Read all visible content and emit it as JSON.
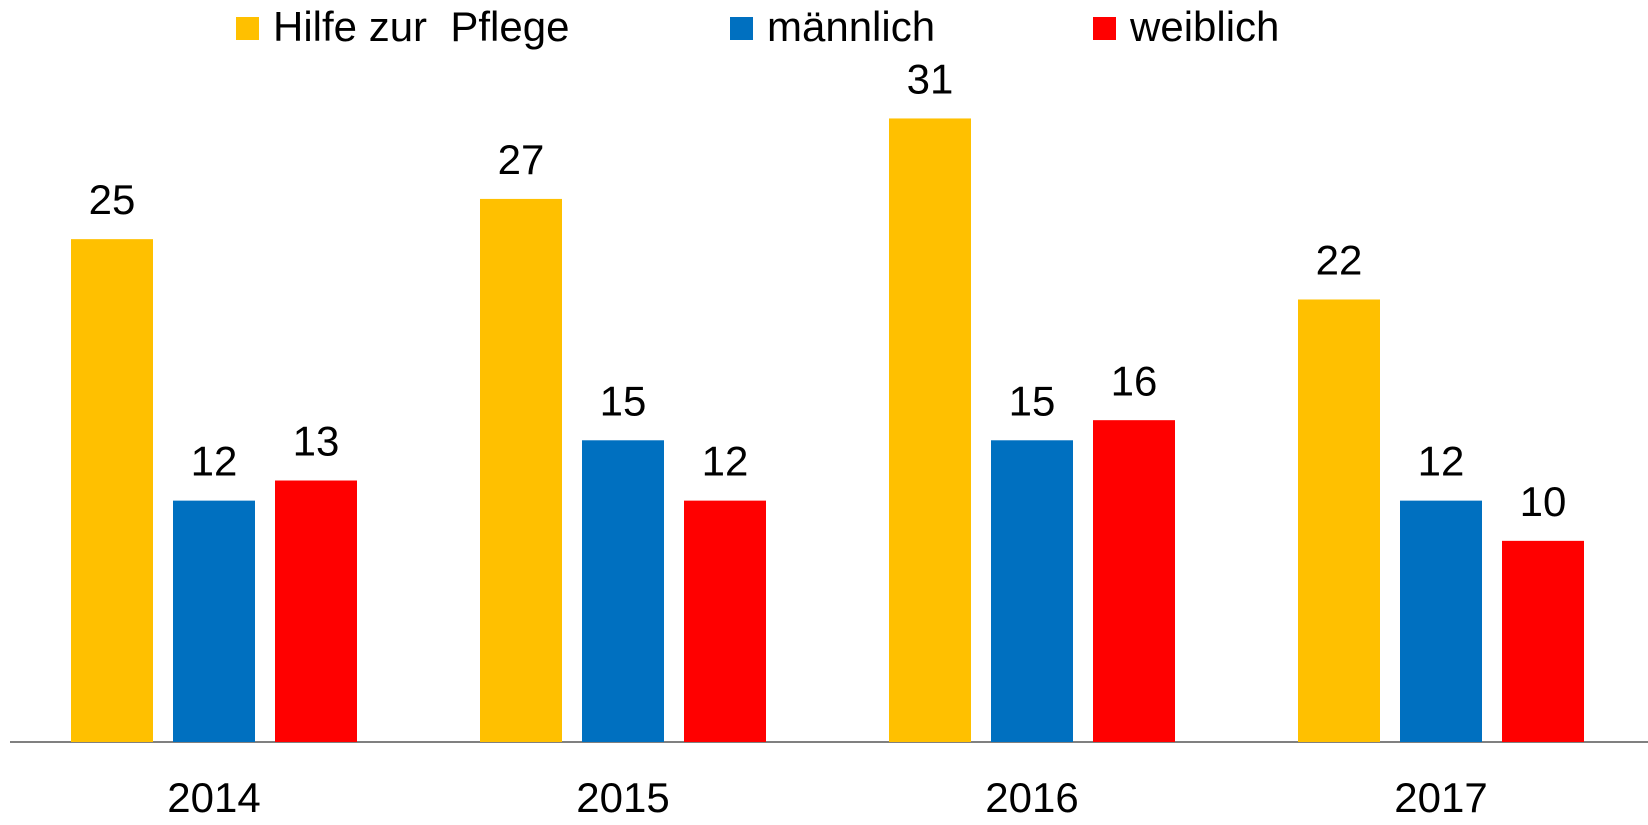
{
  "chart_data": {
    "type": "bar",
    "categories": [
      "2014",
      "2015",
      "2016",
      "2017"
    ],
    "series": [
      {
        "name": "Hilfe zur  Pflege",
        "color": "#ffc000",
        "values": [
          25,
          27,
          31,
          22
        ]
      },
      {
        "name": "männlich",
        "color": "#0070c0",
        "values": [
          12,
          15,
          15,
          12
        ]
      },
      {
        "name": "weiblich",
        "color": "#ff0000",
        "values": [
          13,
          12,
          16,
          10
        ]
      }
    ],
    "ylim": [
      0,
      35
    ],
    "legend": "top"
  }
}
